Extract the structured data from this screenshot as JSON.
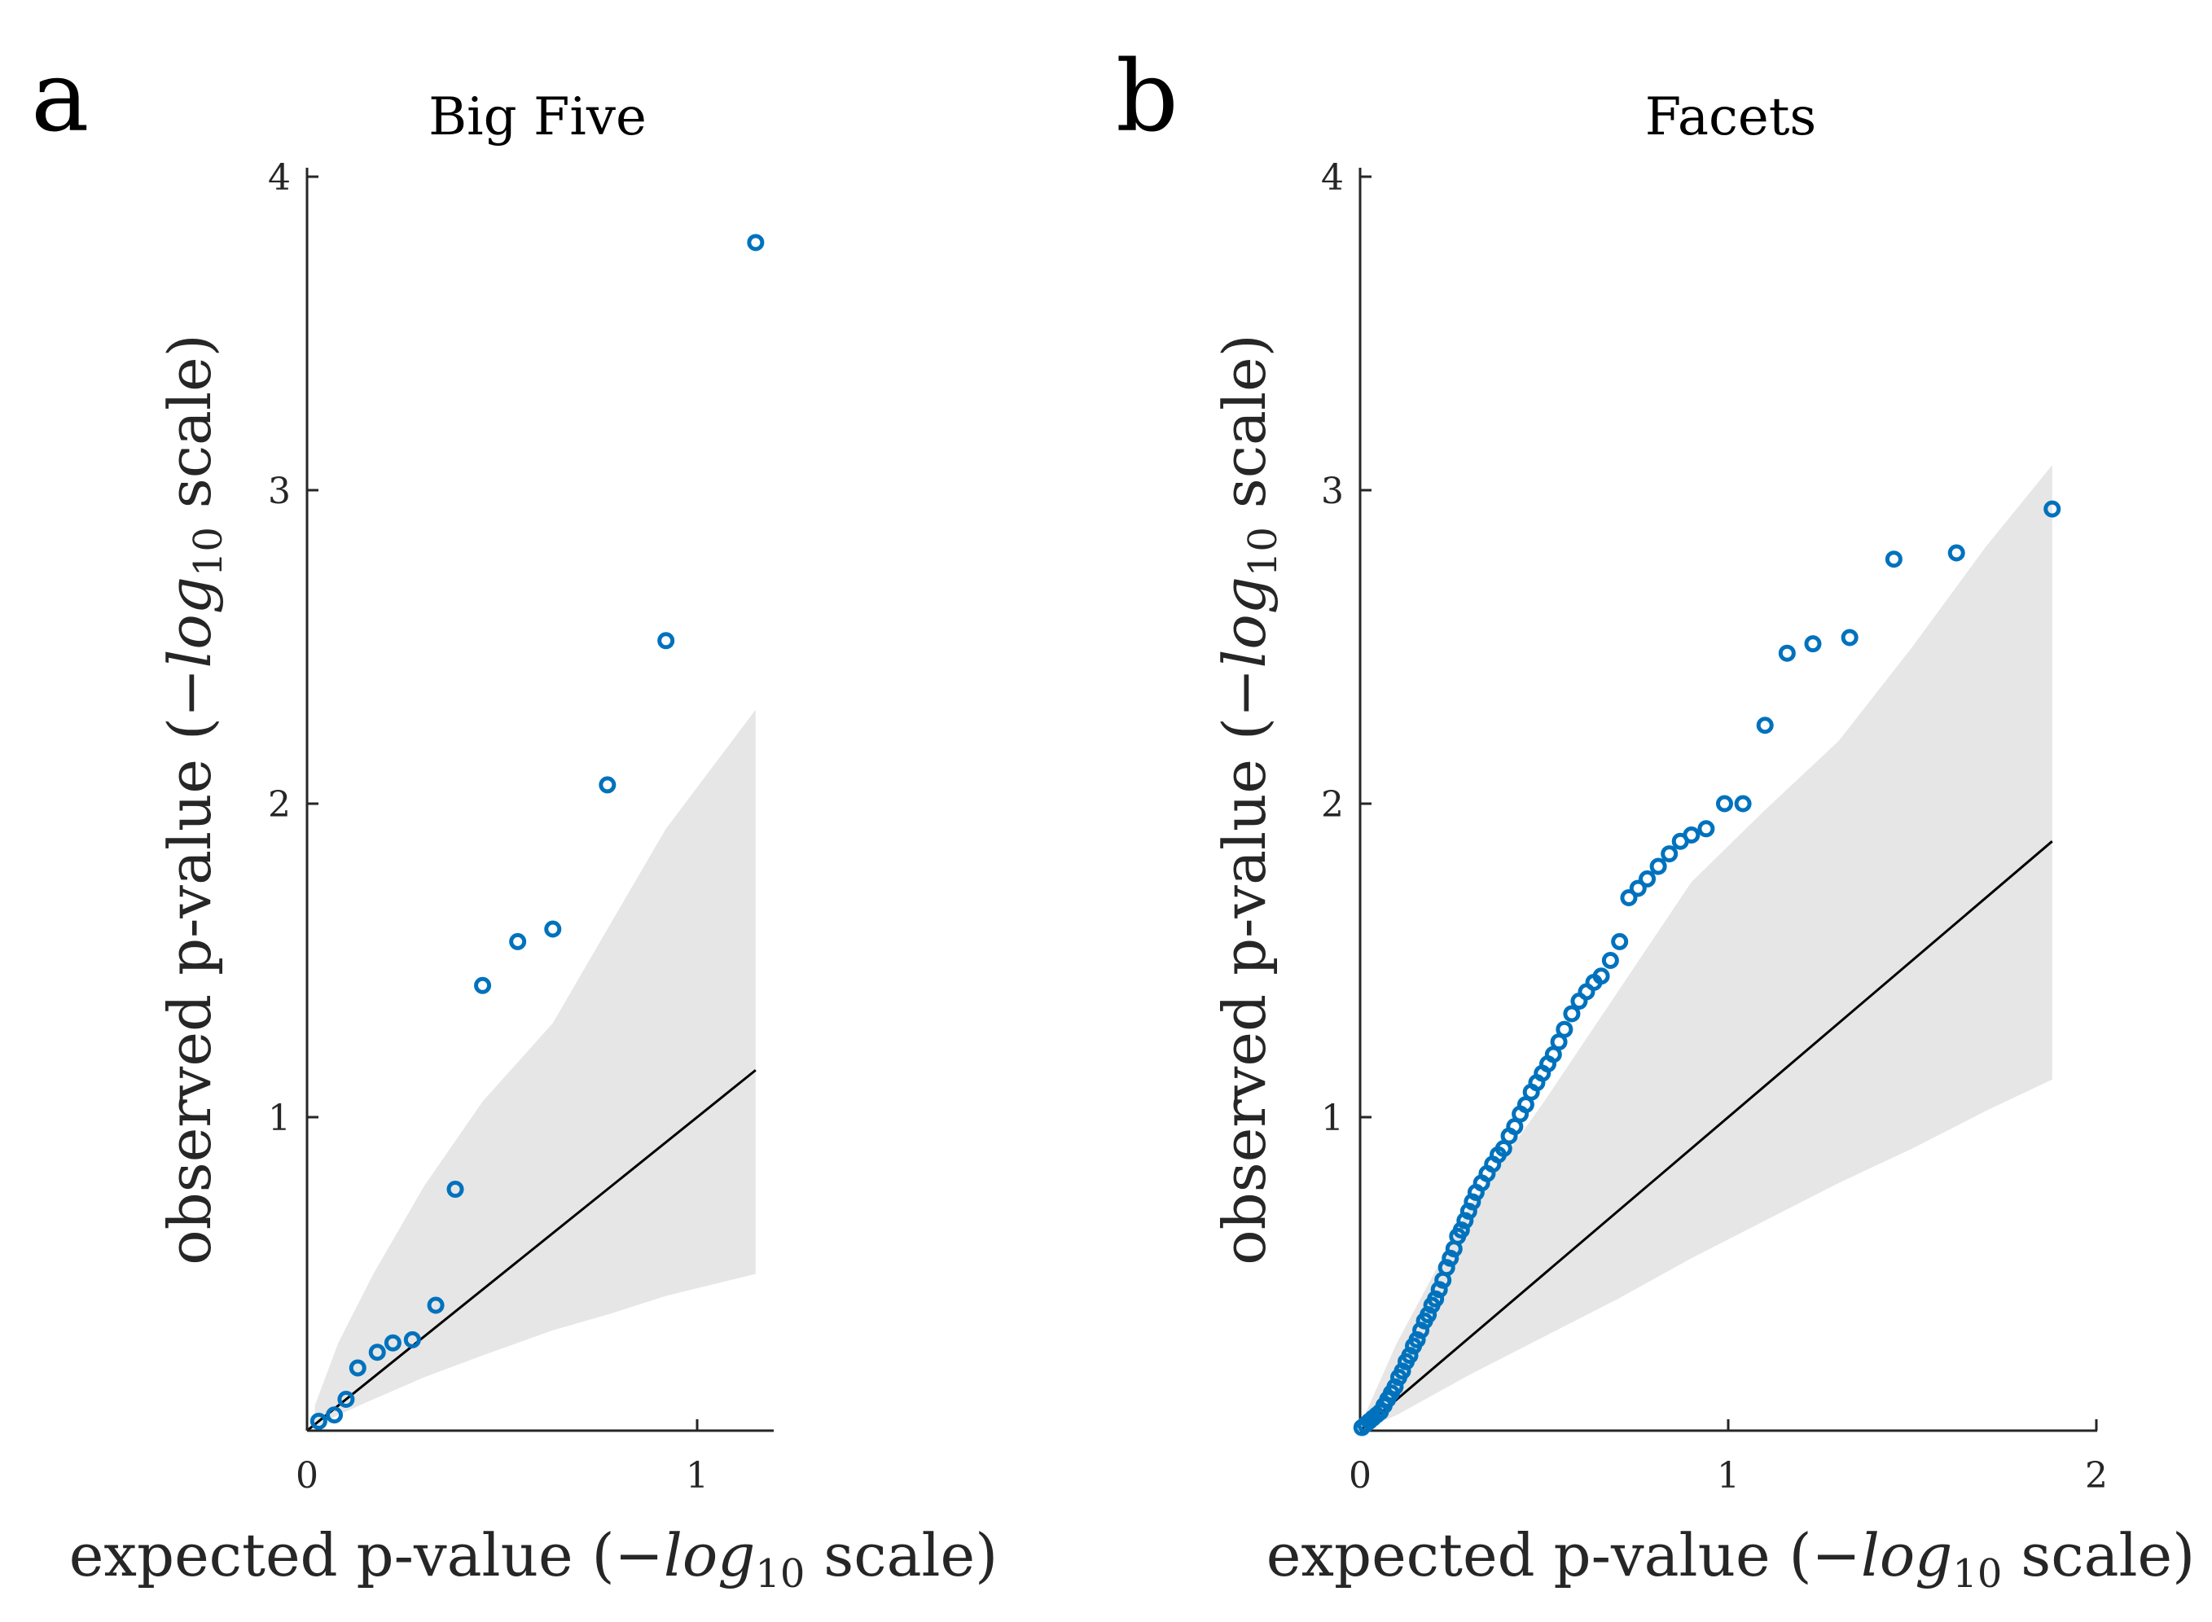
{
  "colors": {
    "points": "#0072BD",
    "band": "#E6E6E6",
    "line": "#000000",
    "axis": "#262626"
  },
  "chart_data": [
    {
      "type": "scatter",
      "panel_label": "a",
      "title": "Big Five",
      "xlabel": {
        "prefix": "expected p-value (",
        "minus": "−",
        "log": "log",
        "sub": "10",
        "suffix": " scale)"
      },
      "ylabel": {
        "prefix": "observed p-value (",
        "minus": "−",
        "log": "log",
        "sub": "10",
        "suffix": " scale)"
      },
      "xlim": [
        0,
        1.2
      ],
      "ylim": [
        0,
        4
      ],
      "xticks": [
        0,
        1
      ],
      "xtick_labels": [
        "0",
        "1"
      ],
      "yticks": [
        1,
        2,
        3,
        4
      ],
      "ytick_labels": [
        "1",
        "2",
        "3",
        "4"
      ],
      "reference_line": {
        "x": [
          0,
          1.15
        ],
        "y": [
          0,
          1.15
        ]
      },
      "confidence_band": {
        "x": [
          0.02,
          0.08,
          0.17,
          0.3,
          0.45,
          0.63,
          0.77,
          0.92,
          1.15
        ],
        "lower": [
          0.01,
          0.05,
          0.1,
          0.17,
          0.24,
          0.32,
          0.37,
          0.43,
          0.5
        ],
        "upper": [
          0.08,
          0.28,
          0.5,
          0.78,
          1.05,
          1.3,
          1.6,
          1.92,
          2.3
        ]
      },
      "series": [
        {
          "name": "observed",
          "x": [
            0.03,
            0.07,
            0.1,
            0.13,
            0.18,
            0.22,
            0.27,
            0.33,
            0.38,
            0.45,
            0.54,
            0.63,
            0.77,
            0.92,
            1.15
          ],
          "y": [
            0.03,
            0.05,
            0.1,
            0.2,
            0.25,
            0.28,
            0.29,
            0.4,
            0.77,
            1.42,
            1.56,
            1.6,
            2.06,
            2.52,
            3.79
          ]
        }
      ]
    },
    {
      "type": "scatter",
      "panel_label": "b",
      "title": "Facets",
      "xlabel": {
        "prefix": "expected p-value (",
        "minus": "−",
        "log": "log",
        "sub": "10",
        "suffix": " scale)"
      },
      "ylabel": {
        "prefix": "observed p-value (",
        "minus": "−",
        "log": "log",
        "sub": "10",
        "suffix": " scale)"
      },
      "xlim": [
        0,
        2
      ],
      "ylim": [
        0,
        4
      ],
      "xticks": [
        0,
        1,
        2
      ],
      "xtick_labels": [
        "0",
        "1",
        "2"
      ],
      "yticks": [
        1,
        2,
        3,
        4
      ],
      "ytick_labels": [
        "1",
        "2",
        "3",
        "4"
      ],
      "reference_line": {
        "x": [
          0,
          1.88
        ],
        "y": [
          0,
          1.88
        ]
      },
      "confidence_band": {
        "x": [
          0.005,
          0.1,
          0.3,
          0.5,
          0.7,
          0.9,
          1.1,
          1.3,
          1.5,
          1.7,
          1.88
        ],
        "lower": [
          0.003,
          0.05,
          0.18,
          0.3,
          0.42,
          0.55,
          0.67,
          0.79,
          0.9,
          1.02,
          1.12
        ],
        "upper": [
          0.03,
          0.28,
          0.72,
          1.05,
          1.4,
          1.75,
          1.98,
          2.2,
          2.5,
          2.82,
          3.08
        ]
      },
      "series": [
        {
          "name": "observed",
          "x": [
            0.005,
            0.015,
            0.025,
            0.035,
            0.045,
            0.055,
            0.065,
            0.075,
            0.085,
            0.095,
            0.105,
            0.115,
            0.125,
            0.135,
            0.145,
            0.155,
            0.165,
            0.175,
            0.185,
            0.195,
            0.205,
            0.215,
            0.225,
            0.235,
            0.245,
            0.255,
            0.265,
            0.275,
            0.285,
            0.295,
            0.305,
            0.315,
            0.33,
            0.345,
            0.36,
            0.375,
            0.39,
            0.405,
            0.42,
            0.435,
            0.45,
            0.465,
            0.48,
            0.495,
            0.51,
            0.525,
            0.54,
            0.555,
            0.575,
            0.595,
            0.615,
            0.635,
            0.655,
            0.68,
            0.705,
            0.73,
            0.755,
            0.78,
            0.81,
            0.84,
            0.87,
            0.9,
            0.94,
            0.99,
            1.04,
            1.1,
            1.16,
            1.23,
            1.33,
            1.45,
            1.62,
            1.88
          ],
          "y": [
            0.01,
            0.02,
            0.03,
            0.04,
            0.05,
            0.06,
            0.08,
            0.1,
            0.12,
            0.14,
            0.17,
            0.19,
            0.22,
            0.24,
            0.27,
            0.29,
            0.32,
            0.35,
            0.37,
            0.4,
            0.42,
            0.45,
            0.48,
            0.52,
            0.55,
            0.58,
            0.62,
            0.64,
            0.67,
            0.7,
            0.73,
            0.76,
            0.79,
            0.82,
            0.85,
            0.88,
            0.9,
            0.94,
            0.97,
            1.01,
            1.04,
            1.08,
            1.11,
            1.14,
            1.17,
            1.2,
            1.24,
            1.28,
            1.33,
            1.37,
            1.4,
            1.43,
            1.45,
            1.5,
            1.56,
            1.7,
            1.73,
            1.76,
            1.8,
            1.84,
            1.88,
            1.9,
            1.92,
            2.0,
            2.0,
            2.25,
            2.48,
            2.51,
            2.53,
            2.78,
            2.8,
            2.94
          ]
        }
      ]
    }
  ]
}
